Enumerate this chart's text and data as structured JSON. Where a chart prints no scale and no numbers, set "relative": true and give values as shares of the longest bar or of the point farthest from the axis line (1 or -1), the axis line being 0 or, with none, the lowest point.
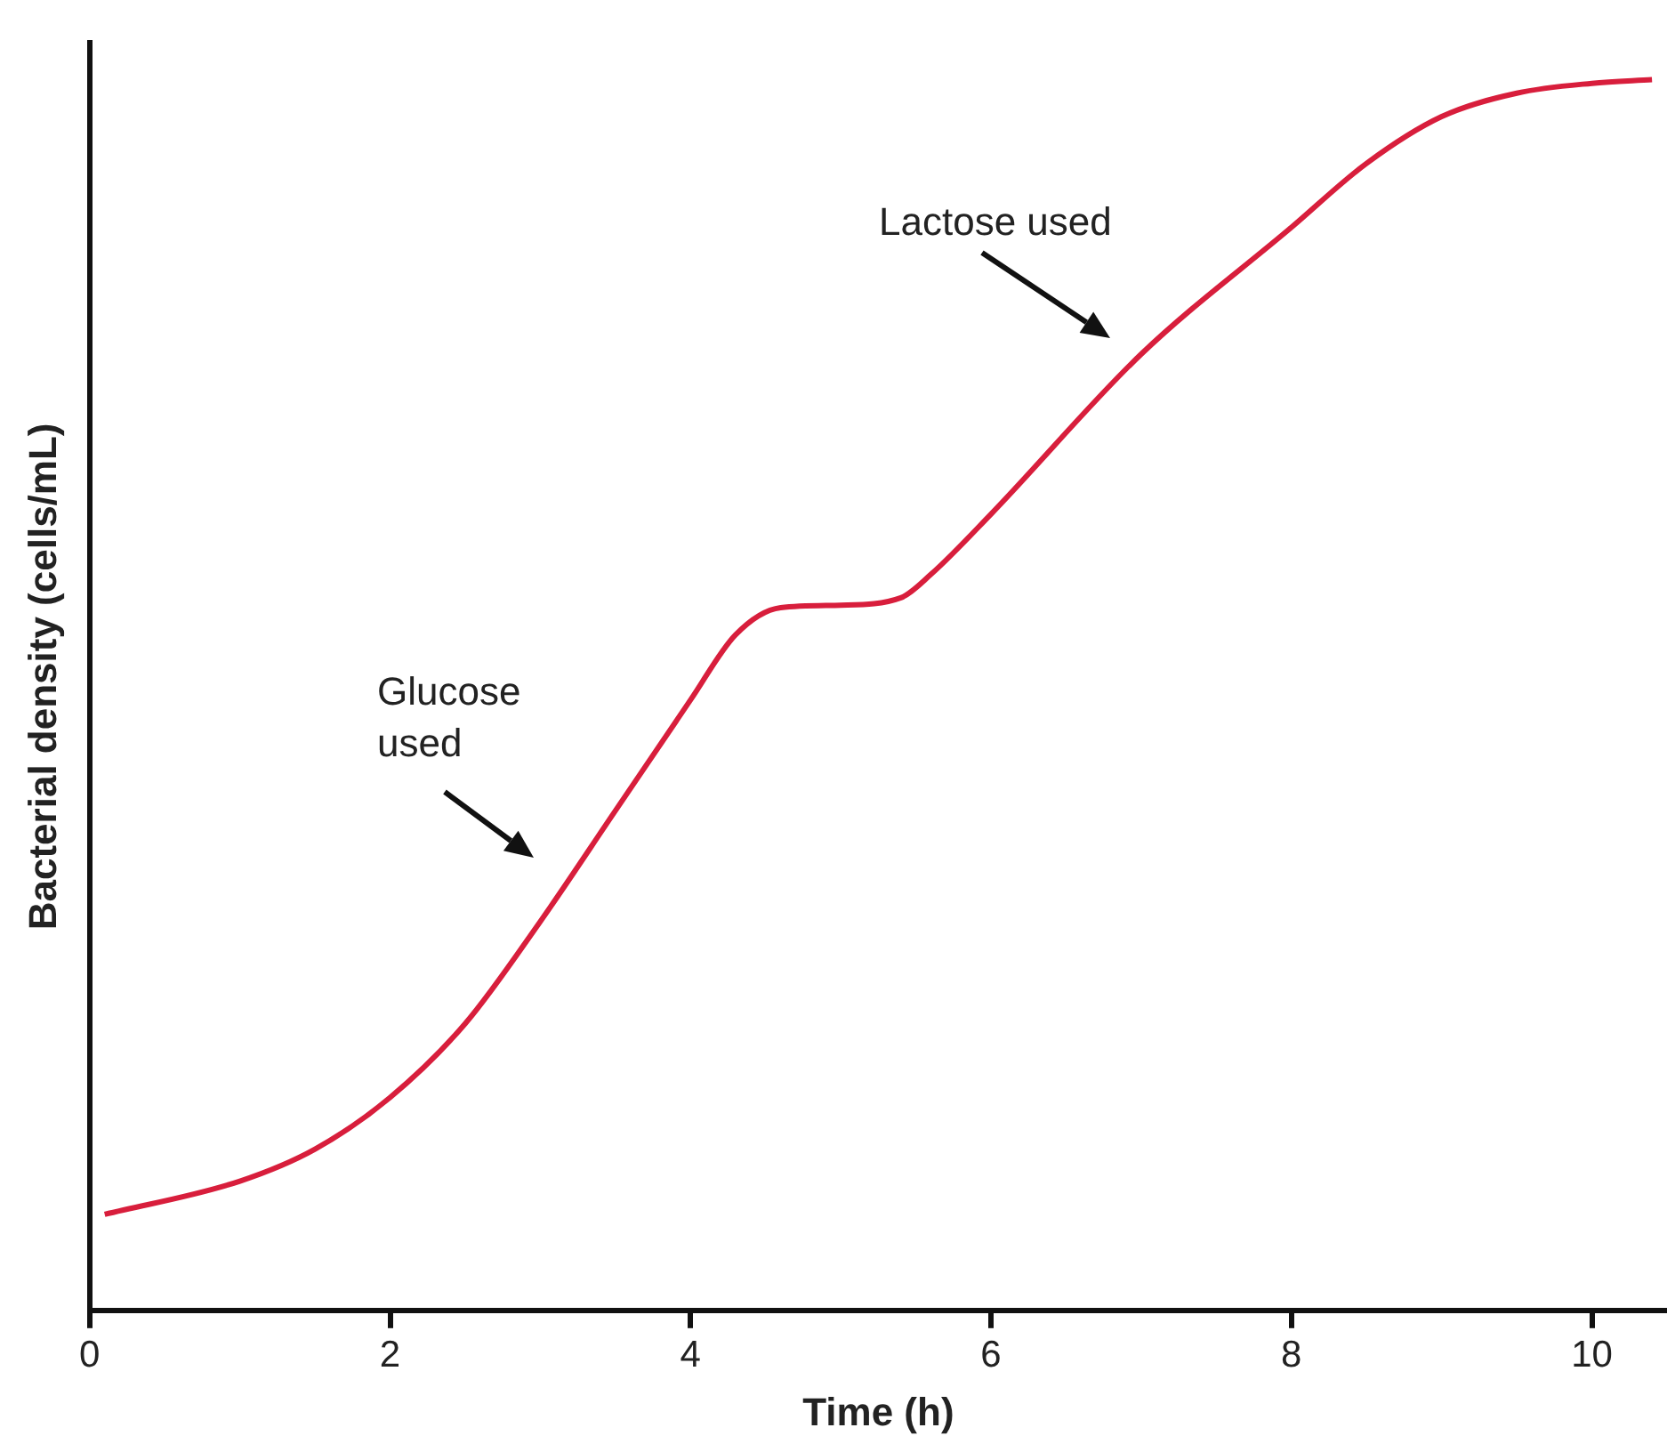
{
  "chart_data": {
    "type": "line",
    "relative": true,
    "xlabel": "Time (h)",
    "ylabel": "Bacterial density (cells/mL)",
    "x": [
      0.1,
      1,
      1.5,
      2,
      2.5,
      3,
      3.5,
      4,
      4.3,
      4.6,
      5,
      5.4,
      5.6,
      6,
      7,
      8,
      8.5,
      9,
      9.5,
      10,
      10.4
    ],
    "series": [
      {
        "color": "#d81e3c",
        "values": [
          0.078,
          0.105,
          0.131,
          0.173,
          0.233,
          0.316,
          0.406,
          0.496,
          0.549,
          0.571,
          0.573,
          0.579,
          0.598,
          0.647,
          0.777,
          0.88,
          0.932,
          0.97,
          0.989,
          0.997,
          1
        ]
      }
    ],
    "xlim": [
      0,
      10.5
    ],
    "xticks": [
      0,
      2,
      4,
      6,
      8,
      10
    ],
    "annotations": [
      "Glucose used",
      "Lactose used"
    ]
  }
}
